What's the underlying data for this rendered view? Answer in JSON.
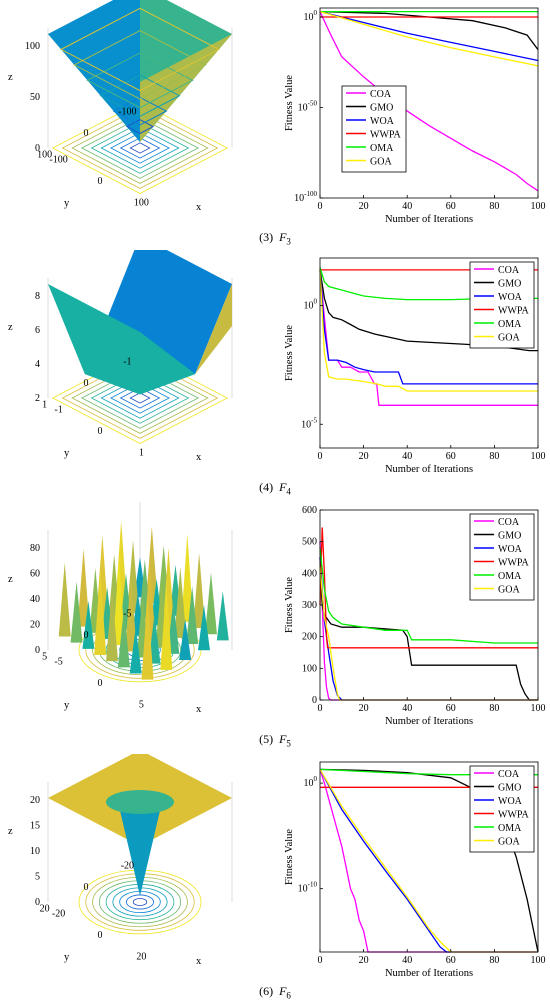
{
  "panels": [
    {
      "caption": {
        "num": "(3)",
        "f": "F",
        "sub": "3"
      },
      "surface": {
        "kind": "vfunnel",
        "z_ticks": [
          "0",
          "50",
          "100"
        ],
        "y_ticks": [
          "100",
          "0",
          "-100"
        ],
        "x_ticks": [
          "-100",
          "0",
          "100"
        ],
        "z_label": "z",
        "x_label": "x",
        "y_label": "y"
      },
      "chart_data": {
        "type": "line",
        "title": "",
        "xlabel": "Number of Iterations",
        "ylabel": "Fitness Value",
        "xlim": [
          0,
          100
        ],
        "yscale": "log",
        "ylim_exp": [
          -100,
          5
        ],
        "xticks": [
          "0",
          "20",
          "40",
          "60",
          "80",
          "100"
        ],
        "yticks": [
          {
            "exp": 0,
            "label": "10"
          },
          {
            "exp": -50,
            "label": "10"
          },
          {
            "exp": -100,
            "label": "10"
          }
        ],
        "legend": "left",
        "series": [
          {
            "name": "COA",
            "color": "#ff00ff",
            "x": [
              0,
              5,
              10,
              20,
              30,
              40,
              50,
              60,
              70,
              80,
              90,
              95,
              100
            ],
            "y": [
              3,
              -10,
              -22,
              -33,
              -43,
              -52,
              -60,
              -67,
              -74,
              -80,
              -87,
              -92,
              -96
            ]
          },
          {
            "name": "GMO",
            "color": "#000000",
            "x": [
              0,
              30,
              50,
              70,
              85,
              95,
              100
            ],
            "y": [
              3,
              2,
              0,
              -2,
              -6,
              -10,
              -18
            ]
          },
          {
            "name": "WOA",
            "color": "#0000ff",
            "x": [
              0,
              20,
              40,
              60,
              80,
              100
            ],
            "y": [
              3,
              -3,
              -9,
              -14,
              -19,
              -24
            ]
          },
          {
            "name": "WWPA",
            "color": "#ff0000",
            "x": [
              0,
              100
            ],
            "y": [
              0,
              0
            ]
          },
          {
            "name": "OMA",
            "color": "#00ee00",
            "x": [
              0,
              100
            ],
            "y": [
              3,
              3
            ]
          },
          {
            "name": "GOA",
            "color": "#ffee00",
            "x": [
              0,
              20,
              40,
              60,
              80,
              100
            ],
            "y": [
              3,
              -4,
              -11,
              -17,
              -22,
              -27
            ]
          }
        ]
      }
    },
    {
      "caption": {
        "num": "(4)",
        "f": "F",
        "sub": "4"
      },
      "surface": {
        "kind": "bowl",
        "z_ticks": [
          "2",
          "4",
          "6",
          "8"
        ],
        "y_ticks": [
          "1",
          "0",
          "-1"
        ],
        "x_ticks": [
          "-1",
          "0",
          "1"
        ],
        "z_label": "z",
        "x_label": "x",
        "y_label": "y"
      },
      "chart_data": {
        "type": "line",
        "title": "",
        "xlabel": "Number of Iterations",
        "ylabel": "Fitness Value",
        "xlim": [
          0,
          100
        ],
        "yscale": "log",
        "ylim_exp": [
          -6,
          2
        ],
        "xticks": [
          "0",
          "20",
          "40",
          "60",
          "80",
          "100"
        ],
        "yticks": [
          {
            "exp": 0,
            "label": "10"
          },
          {
            "exp": -5,
            "label": "10"
          }
        ],
        "legend": "right",
        "series": [
          {
            "name": "COA",
            "color": "#ff00ff",
            "x": [
              0,
              2,
              4,
              8,
              10,
              14,
              18,
              22,
              25,
              26,
              27,
              28,
              100
            ],
            "y": [
              1.5,
              -0.5,
              -2.3,
              -2.3,
              -2.6,
              -2.6,
              -2.8,
              -2.8,
              -3.3,
              -3.3,
              -4.2,
              -4.2,
              -4.2
            ]
          },
          {
            "name": "GMO",
            "color": "#000000",
            "x": [
              0,
              2,
              4,
              6,
              10,
              14,
              18,
              25,
              30,
              40,
              60,
              80,
              96,
              100
            ],
            "y": [
              1.5,
              0.3,
              -0.3,
              -0.5,
              -0.6,
              -0.8,
              -1.0,
              -1.2,
              -1.3,
              -1.5,
              -1.6,
              -1.7,
              -1.9,
              -1.9
            ]
          },
          {
            "name": "WOA",
            "color": "#0000ff",
            "x": [
              0,
              2,
              4,
              8,
              12,
              16,
              20,
              25,
              30,
              36,
              38,
              40,
              100
            ],
            "y": [
              1.5,
              -1.0,
              -2.3,
              -2.3,
              -2.4,
              -2.6,
              -2.7,
              -2.8,
              -2.8,
              -2.8,
              -3.3,
              -3.3,
              -3.3
            ]
          },
          {
            "name": "WWPA",
            "color": "#ff0000",
            "x": [
              0,
              100
            ],
            "y": [
              1.5,
              1.5
            ]
          },
          {
            "name": "OMA",
            "color": "#00ee00",
            "x": [
              0,
              2,
              4,
              8,
              12,
              16,
              20,
              30,
              40,
              60,
              80,
              100
            ],
            "y": [
              1.6,
              1.0,
              0.8,
              0.7,
              0.6,
              0.5,
              0.4,
              0.3,
              0.25,
              0.25,
              0.3,
              0.3
            ]
          },
          {
            "name": "GOA",
            "color": "#ffee00",
            "x": [
              0,
              2,
              4,
              8,
              12,
              20,
              26,
              30,
              36,
              40,
              60,
              100
            ],
            "y": [
              1.5,
              -2.0,
              -3.0,
              -3.1,
              -3.1,
              -3.2,
              -3.3,
              -3.4,
              -3.4,
              -3.6,
              -3.6,
              -3.6
            ]
          }
        ]
      }
    },
    {
      "caption": {
        "num": "(5)",
        "f": "F",
        "sub": "5"
      },
      "surface": {
        "kind": "rastrigin",
        "z_ticks": [
          "0",
          "20",
          "40",
          "60",
          "80"
        ],
        "y_ticks": [
          "5",
          "0",
          "-5"
        ],
        "x_ticks": [
          "-5",
          "0",
          "5"
        ],
        "z_label": "z",
        "x_label": "x",
        "y_label": "y"
      },
      "chart_data": {
        "type": "line",
        "title": "",
        "xlabel": "Number of Iterations",
        "ylabel": "Fitness Value",
        "xlim": [
          0,
          100
        ],
        "yscale": "linear",
        "ylim": [
          0,
          600
        ],
        "xticks": [
          "0",
          "20",
          "40",
          "60",
          "80",
          "100"
        ],
        "yticks": [
          {
            "v": 0,
            "label": "0"
          },
          {
            "v": 100,
            "label": "100"
          },
          {
            "v": 200,
            "label": "200"
          },
          {
            "v": 300,
            "label": "300"
          },
          {
            "v": 400,
            "label": "400"
          },
          {
            "v": 500,
            "label": "500"
          },
          {
            "v": 600,
            "label": "600"
          }
        ],
        "legend": "right",
        "series": [
          {
            "name": "COA",
            "color": "#ff00ff",
            "x": [
              0,
              1,
              2,
              3,
              4,
              5,
              100
            ],
            "y": [
              500,
              300,
              120,
              40,
              5,
              0,
              0
            ]
          },
          {
            "name": "GMO",
            "color": "#000000",
            "x": [
              0,
              1,
              2,
              3,
              5,
              10,
              20,
              38,
              40,
              42,
              60,
              80,
              90,
              92,
              94,
              96,
              100
            ],
            "y": [
              450,
              300,
              270,
              260,
              240,
              230,
              230,
              220,
              200,
              110,
              110,
              110,
              110,
              50,
              20,
              0,
              0
            ]
          },
          {
            "name": "WOA",
            "color": "#0000ff",
            "x": [
              0,
              2,
              4,
              6,
              8,
              10,
              100
            ],
            "y": [
              450,
              250,
              150,
              60,
              15,
              0,
              0
            ]
          },
          {
            "name": "WWPA",
            "color": "#ff0000",
            "x": [
              0,
              1,
              2,
              3,
              3.5,
              100
            ],
            "y": [
              300,
              545,
              400,
              200,
              165,
              165
            ]
          },
          {
            "name": "OMA",
            "color": "#00ee00",
            "x": [
              0,
              2,
              4,
              6,
              10,
              20,
              30,
              40,
              42,
              60,
              80,
              100
            ],
            "y": [
              480,
              350,
              280,
              260,
              240,
              230,
              220,
              220,
              190,
              190,
              180,
              180
            ]
          },
          {
            "name": "GOA",
            "color": "#ffee00",
            "x": [
              0,
              2,
              4,
              6,
              8,
              9,
              100
            ],
            "y": [
              420,
              260,
              200,
              100,
              20,
              0,
              0
            ]
          }
        ]
      }
    },
    {
      "caption": {
        "num": "(6)",
        "f": "F",
        "sub": "6"
      },
      "surface": {
        "kind": "spike",
        "z_ticks": [
          "0",
          "5",
          "10",
          "15",
          "20"
        ],
        "y_ticks": [
          "20",
          "0",
          "-20"
        ],
        "x_ticks": [
          "-20",
          "0",
          "20"
        ],
        "z_label": "z",
        "x_label": "x",
        "y_label": "y"
      },
      "chart_data": {
        "type": "line",
        "title": "",
        "xlabel": "Number of Iterations",
        "ylabel": "Fitness Value",
        "xlim": [
          0,
          100
        ],
        "yscale": "log",
        "ylim_exp": [
          -16,
          2
        ],
        "xticks": [
          "0",
          "20",
          "40",
          "60",
          "80",
          "100"
        ],
        "yticks": [
          {
            "exp": 0,
            "label": "10"
          },
          {
            "exp": -10,
            "label": "10"
          }
        ],
        "legend": "right",
        "series": [
          {
            "name": "COA",
            "color": "#ff00ff",
            "x": [
              0,
              2,
              4,
              6,
              8,
              10,
              12,
              14,
              16,
              18,
              20,
              22,
              24,
              100
            ],
            "y": [
              1.3,
              0,
              -1.5,
              -3,
              -4.5,
              -6,
              -8,
              -10,
              -11,
              -13,
              -14,
              -16,
              -16,
              -16
            ]
          },
          {
            "name": "GMO",
            "color": "#000000",
            "x": [
              0,
              20,
              40,
              60,
              70,
              80,
              85,
              90,
              95,
              100
            ],
            "y": [
              1.3,
              1.2,
              1.0,
              0.5,
              -0.5,
              -2,
              -4,
              -7,
              -11,
              -16
            ]
          },
          {
            "name": "WOA",
            "color": "#0000ff",
            "x": [
              0,
              10,
              20,
              30,
              40,
              50,
              55,
              58,
              100
            ],
            "y": [
              1.3,
              -2.5,
              -5.5,
              -8.3,
              -11,
              -14,
              -15.5,
              -16,
              -16
            ]
          },
          {
            "name": "WWPA",
            "color": "#ff0000",
            "x": [
              0,
              100
            ],
            "y": [
              -0.4,
              -0.4
            ]
          },
          {
            "name": "OMA",
            "color": "#00ee00",
            "x": [
              0,
              20,
              40,
              60,
              80,
              100
            ],
            "y": [
              1.3,
              1.1,
              0.9,
              0.8,
              0.8,
              0.8
            ]
          },
          {
            "name": "GOA",
            "color": "#ffee00",
            "x": [
              0,
              10,
              20,
              30,
              40,
              50,
              55,
              60,
              100
            ],
            "y": [
              1.3,
              -2.2,
              -5.2,
              -8,
              -10.8,
              -13.8,
              -15,
              -16,
              -16
            ]
          }
        ]
      }
    }
  ]
}
